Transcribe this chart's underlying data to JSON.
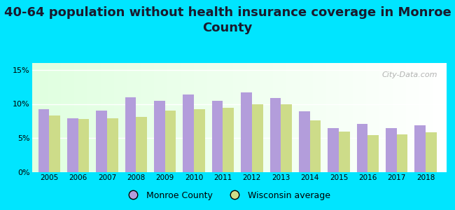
{
  "title": "40-64 population without health insurance coverage in Monroe\nCounty",
  "years": [
    2005,
    2006,
    2007,
    2008,
    2009,
    2010,
    2011,
    2012,
    2013,
    2014,
    2015,
    2016,
    2017,
    2018
  ],
  "monroe_county": [
    9.2,
    7.9,
    9.0,
    11.0,
    10.5,
    11.4,
    10.5,
    11.7,
    10.9,
    8.9,
    6.5,
    7.1,
    6.5,
    6.9
  ],
  "wisconsin_avg": [
    8.3,
    7.8,
    7.9,
    8.1,
    9.0,
    9.2,
    9.4,
    9.9,
    9.9,
    7.6,
    5.9,
    5.4,
    5.5,
    5.8
  ],
  "monroe_color": "#b39ddb",
  "wisconsin_color": "#cddc89",
  "background_color": "#00e5ff",
  "title_fontsize": 13,
  "ylim": [
    0,
    16
  ],
  "yticks": [
    0,
    5,
    10,
    15
  ],
  "ytick_labels": [
    "0%",
    "5%",
    "10%",
    "15%"
  ],
  "legend_monroe": "Monroe County",
  "legend_wisconsin": "Wisconsin average",
  "watermark": "City-Data.com"
}
